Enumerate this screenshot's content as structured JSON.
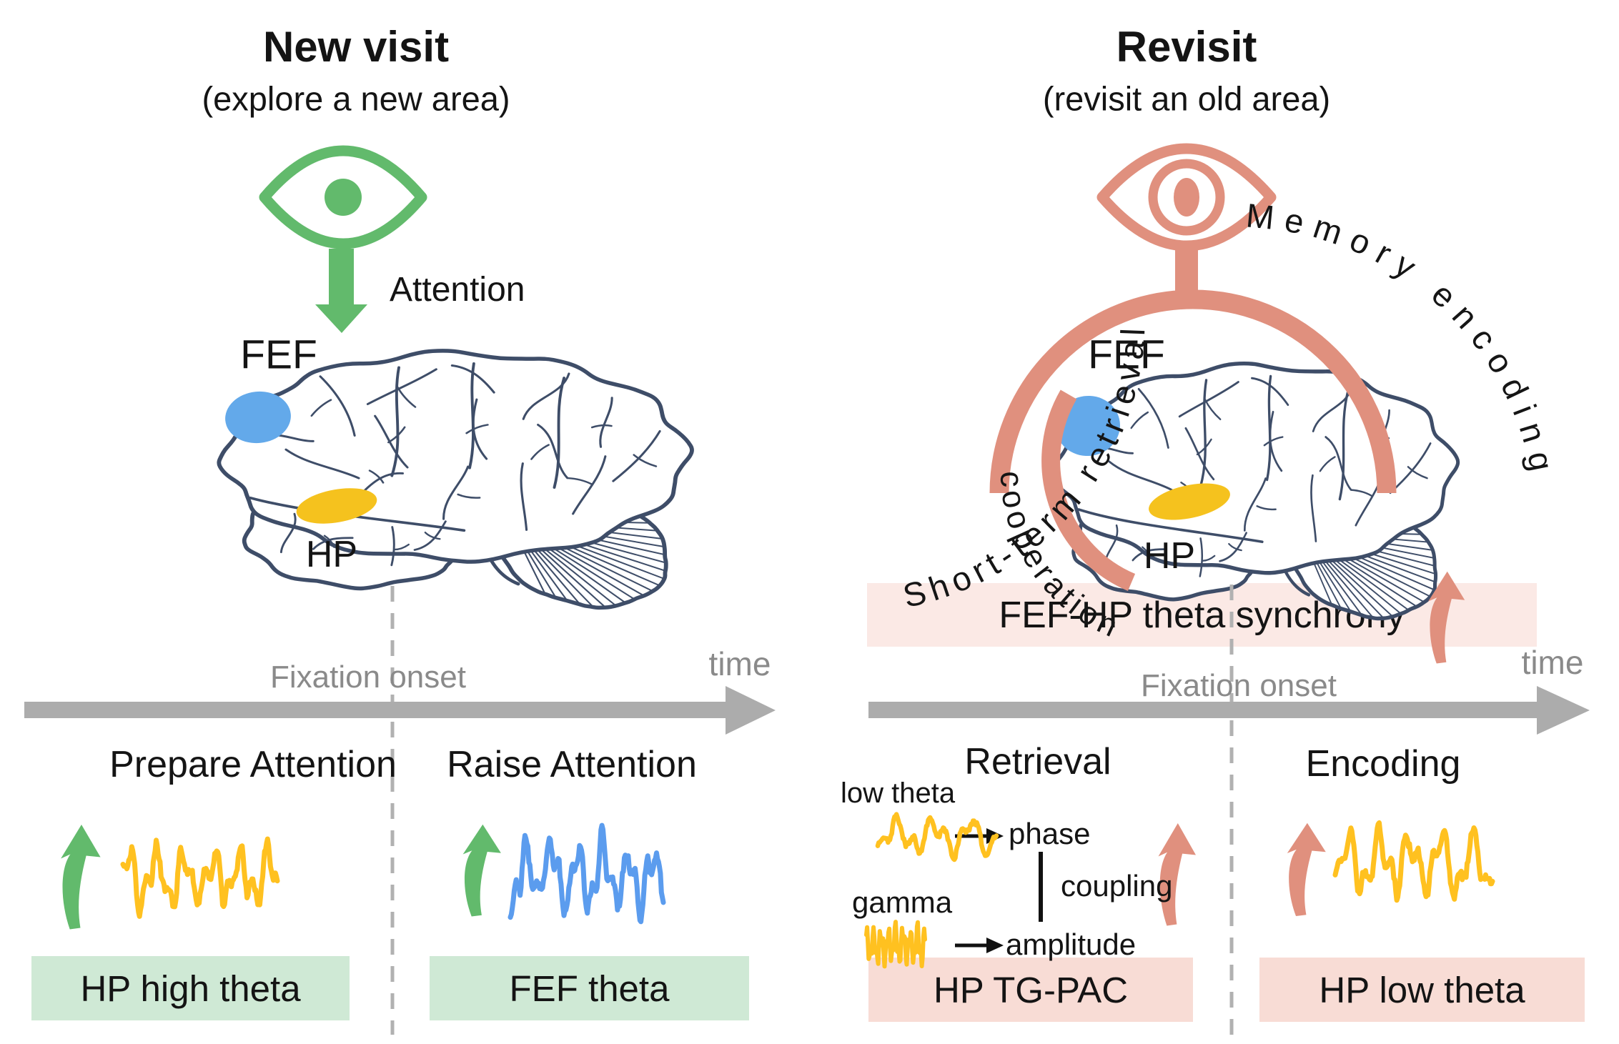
{
  "colors": {
    "green": "#62BA6C",
    "green_box": "#CFE9D5",
    "salmon": "#E0907E",
    "banner_bg": "#FBE9E5",
    "pink_box": "#F8DCD5",
    "yellow": "#FFC120",
    "oval_yellow": "#F5C21E",
    "blue": "#63A9EA",
    "wave_blue": "#5B9CEE",
    "brain_line": "#3E4D68",
    "timeline_gray": "#ACACAC",
    "muted_text": "#8A8A8A",
    "dash_gray": "#B1B1B1",
    "text": "#141414"
  },
  "icons": {
    "eye": "eye-icon",
    "attention_arrow": "arrow-down-icon",
    "increase_arrow": "curved-arrow-up-icon",
    "timeline_arrow": "arrow-right-icon"
  },
  "left": {
    "title": "New visit",
    "subtitle": "(explore a new area)",
    "attention_label": "Attention",
    "fef_label": "FEF",
    "hp_label": "HP",
    "fixation_label": "Fixation onset",
    "time_label": "time",
    "pre_label": "Prepare Attention",
    "post_label": "Raise Attention",
    "box_pre": "HP high theta",
    "box_post": "FEF theta"
  },
  "right": {
    "title": "Revisit",
    "subtitle": "(revisit an old area)",
    "arc_left_label": "Short-term retrieval",
    "arc_right_label": "Memory encoding",
    "arc_inner_label": "cooperation",
    "fef_label": "FEF",
    "hp_label": "HP",
    "banner_label": "FEF-HP theta synchrony",
    "fixation_label": "Fixation onset",
    "time_label": "time",
    "pre_label": "Retrieval",
    "post_label": "Encoding",
    "pac": {
      "low_theta": "low theta",
      "gamma": "gamma",
      "phase": "phase",
      "amplitude": "amplitude",
      "coupling": "coupling"
    },
    "box_pre": "HP TG-PAC",
    "box_post": "HP low theta"
  }
}
